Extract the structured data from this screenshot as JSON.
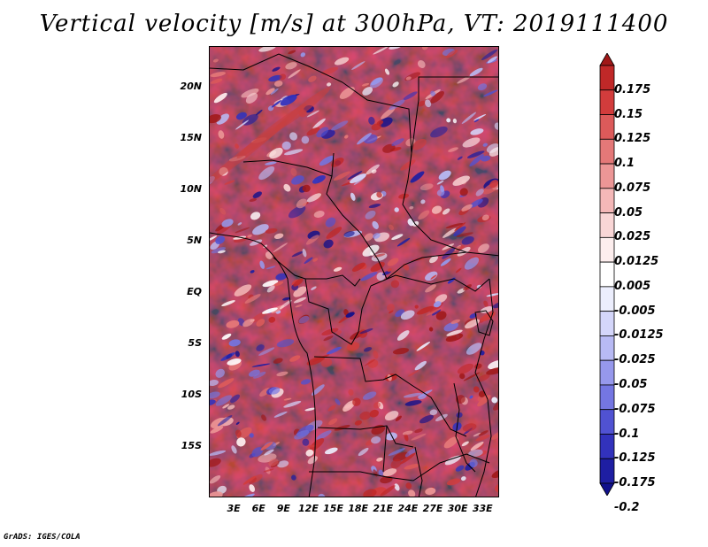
{
  "title": "Vertical velocity [m/s] at 300hPa, VT: 2019111400",
  "credit": "GrADS: IGES/COLA",
  "map": {
    "variable": "vertical velocity",
    "units": "m/s",
    "level": "300hPa",
    "valid_time": "2019111400",
    "lon_range": [
      0,
      35
    ],
    "lat_range": [
      -20,
      24
    ],
    "lat_ticks": [
      {
        "value": 20,
        "label": "20N"
      },
      {
        "value": 15,
        "label": "15N"
      },
      {
        "value": 10,
        "label": "10N"
      },
      {
        "value": 5,
        "label": "5N"
      },
      {
        "value": 0,
        "label": "EQ"
      },
      {
        "value": -5,
        "label": "5S"
      },
      {
        "value": -10,
        "label": "10S"
      },
      {
        "value": -15,
        "label": "15S"
      }
    ],
    "lon_ticks": [
      {
        "value": 3,
        "label": "3E"
      },
      {
        "value": 6,
        "label": "6E"
      },
      {
        "value": 9,
        "label": "9E"
      },
      {
        "value": 12,
        "label": "12E"
      },
      {
        "value": 15,
        "label": "15E"
      },
      {
        "value": 18,
        "label": "18E"
      },
      {
        "value": 21,
        "label": "21E"
      },
      {
        "value": 24,
        "label": "24E"
      },
      {
        "value": 27,
        "label": "27E"
      },
      {
        "value": 30,
        "label": "30E"
      },
      {
        "value": 33,
        "label": "33E"
      }
    ]
  },
  "colorbar": {
    "labels": [
      "0.175",
      "0.15",
      "0.125",
      "0.1",
      "0.075",
      "0.05",
      "0.025",
      "0.0125",
      "0.005",
      "-0.005",
      "-0.0125",
      "-0.025",
      "-0.05",
      "-0.075",
      "-0.1",
      "-0.125",
      "-0.175",
      "-0.2"
    ],
    "colors": [
      "#a01818",
      "#c02828",
      "#d23c3c",
      "#dc5a5a",
      "#e47878",
      "#ec9696",
      "#f4b8b8",
      "#f9d6d6",
      "#fdeeee",
      "#ffffff",
      "#eceefd",
      "#d4d6fa",
      "#b8baf4",
      "#9698ec",
      "#7476e2",
      "#5052d2",
      "#3232bc",
      "#1e1ea2",
      "#10108c"
    ]
  }
}
